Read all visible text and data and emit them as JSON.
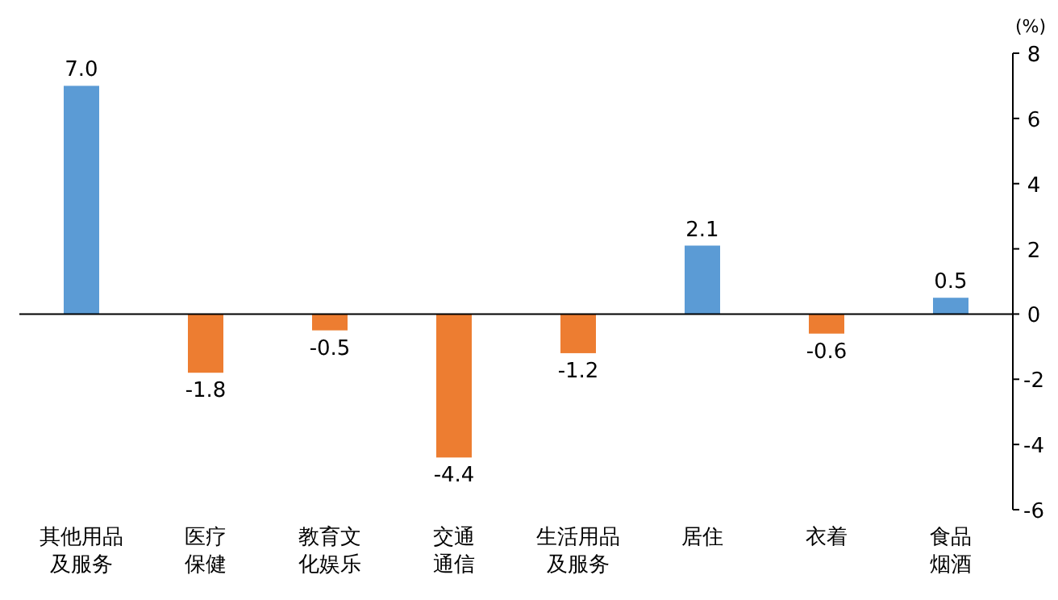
{
  "chart_data": {
    "type": "bar",
    "ylabel": "(%)",
    "categories": [
      "其他用品及服务",
      "医疗保健",
      "教育文化娱乐",
      "交通通信",
      "生活用品及服务",
      "居住",
      "衣着",
      "食品烟酒"
    ],
    "values": [
      7.0,
      -1.8,
      -0.5,
      -4.4,
      -1.2,
      2.1,
      -0.6,
      0.5
    ],
    "colors": [
      "#5b9bd5",
      "#ed7d31",
      "#ed7d31",
      "#ed7d31",
      "#ed7d31",
      "#5b9bd5",
      "#ed7d31",
      "#5b9bd5"
    ],
    "value_labels": [
      "7.0",
      "-1.8",
      "-0.5",
      "-4.4",
      "-1.2",
      "2.1",
      "-0.6",
      "0.5"
    ],
    "ylim": [
      -6,
      8
    ],
    "yticks": [
      -6,
      -4,
      -2,
      0,
      2,
      4,
      6,
      8
    ]
  }
}
